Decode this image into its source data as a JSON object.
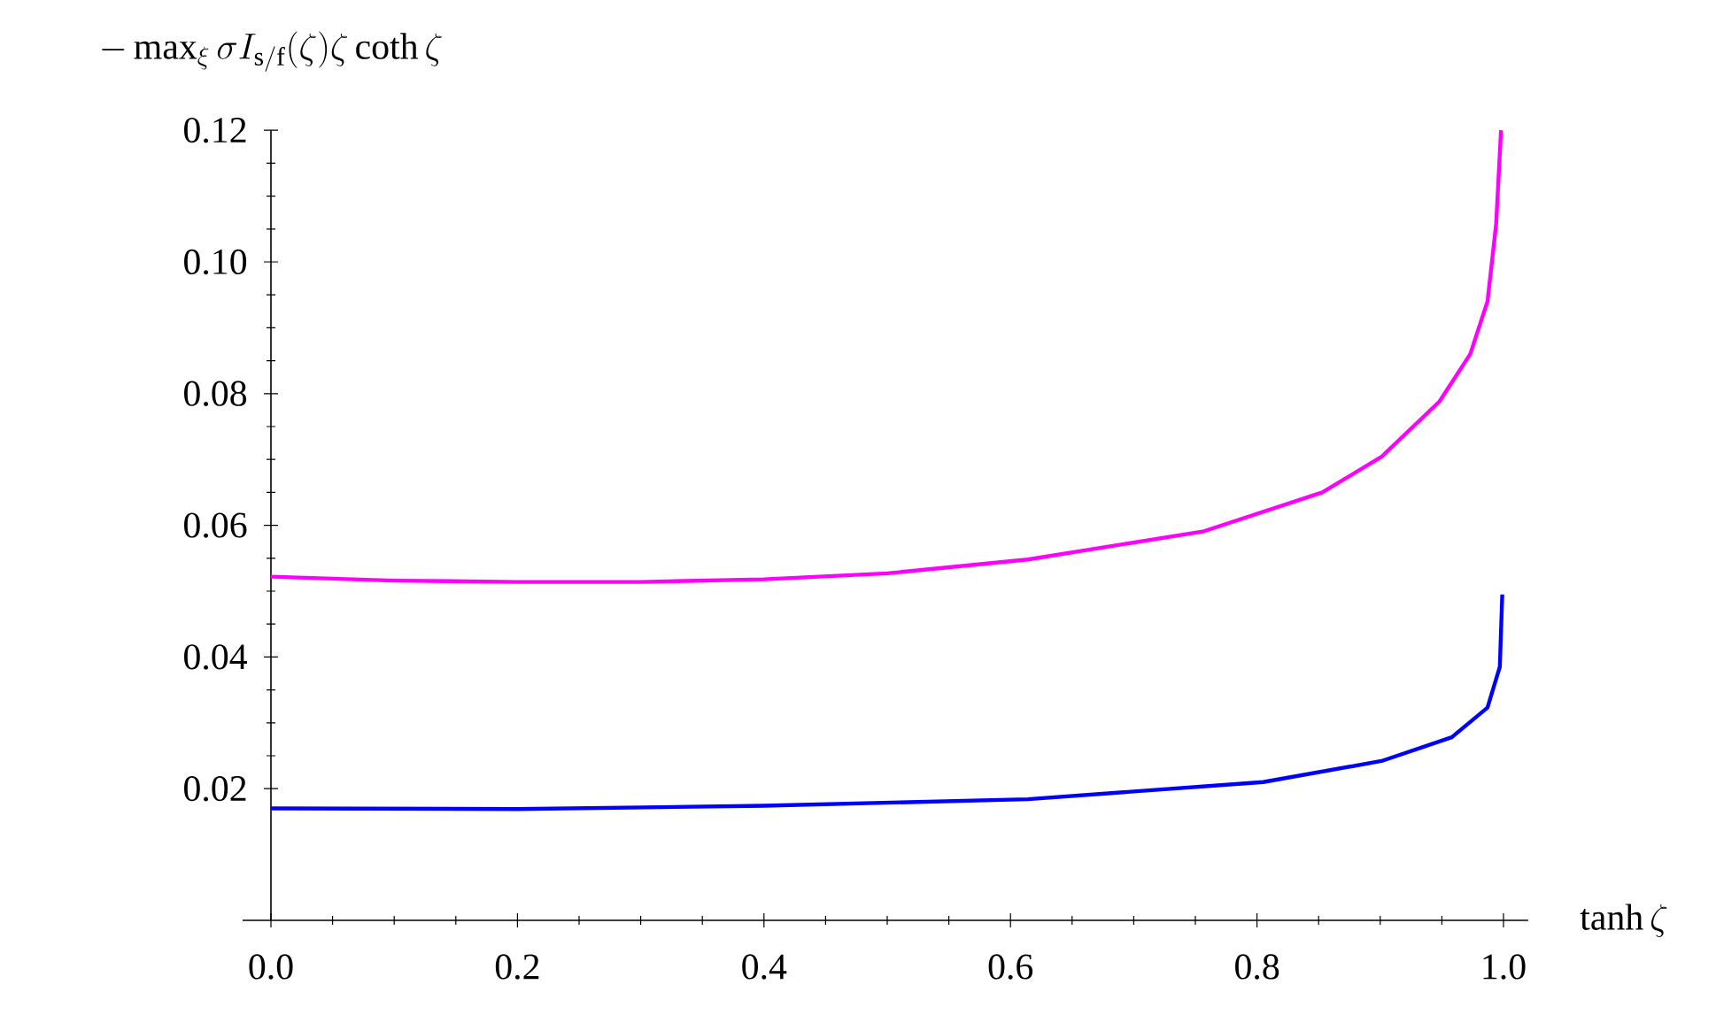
{
  "chart_data": {
    "type": "line",
    "xlabel": "\\tanh\\zeta",
    "ylabel": "-\\max_{\\xi}\\sigma I_{\\mathrm{s/f}}(\\zeta)\\zeta\\coth\\zeta",
    "xlim": [
      -0.023,
      1.02
    ],
    "ylim": [
      0,
      0.12
    ],
    "xticks": [
      {
        "value": 0,
        "label": "0.0"
      },
      {
        "value": 0.2,
        "label": "0.2"
      },
      {
        "value": 0.4,
        "label": "0.4"
      },
      {
        "value": 0.6,
        "label": "0.6"
      },
      {
        "value": 0.8,
        "label": "0.8"
      },
      {
        "value": 1,
        "label": "1.0"
      }
    ],
    "yticks": [
      0.02,
      0.04,
      0.06,
      0.08,
      {
        "value": 0.1,
        "label": "0.10"
      },
      0.12
    ],
    "grid": false,
    "legend": false,
    "marker": "none",
    "line_style": "solid",
    "series": [
      {
        "color": "#ff00ff",
        "x": [
          0,
          0.1,
          0.2,
          0.3,
          0.4,
          0.5,
          0.614,
          0.757,
          0.853,
          0.901,
          0.948,
          0.973,
          0.987,
          0.994,
          0.998
        ],
        "values": [
          0.0522,
          0.0516,
          0.0514,
          0.0514,
          0.0518,
          0.0527,
          0.0548,
          0.0591,
          0.065,
          0.0704,
          0.0788,
          0.086,
          0.094,
          0.1057,
          0.12
        ]
      },
      {
        "color": "#0000ff",
        "x": [
          0,
          0.2,
          0.4,
          0.614,
          0.805,
          0.901,
          0.958,
          0.987,
          0.997,
          0.999
        ],
        "values": [
          0.017,
          0.0169,
          0.0174,
          0.0184,
          0.021,
          0.0242,
          0.0278,
          0.0323,
          0.0385,
          0.0495
        ]
      }
    ]
  }
}
